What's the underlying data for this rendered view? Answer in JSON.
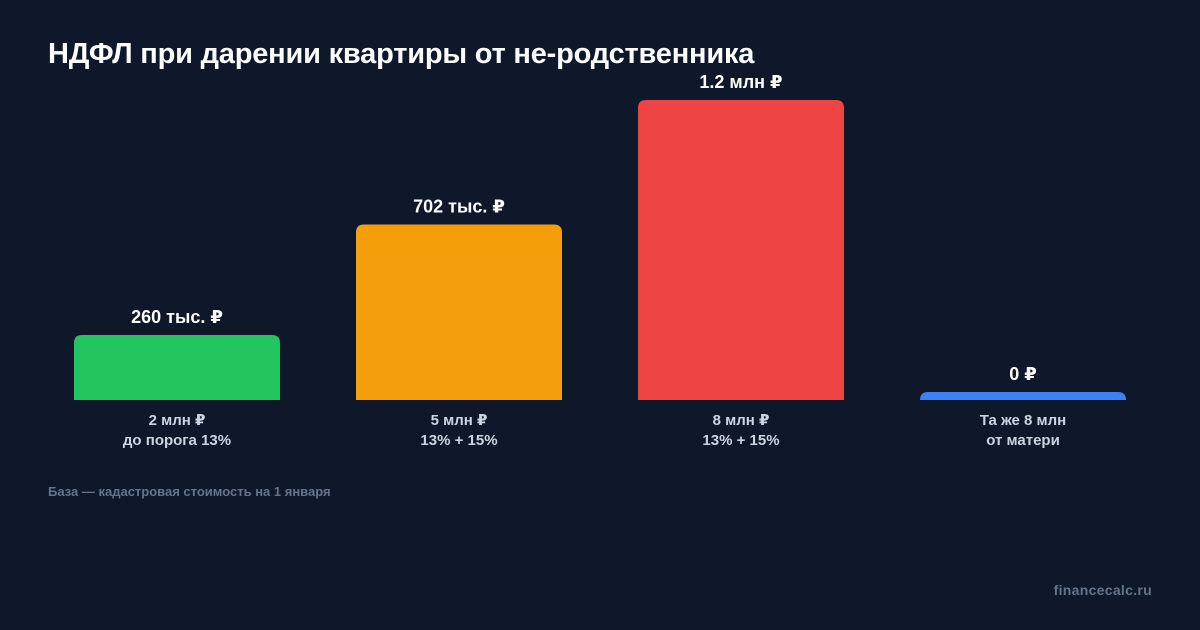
{
  "title": "НДФЛ при дарении квартиры от не-родственника",
  "footnote": "База — кадастровая стоимость на 1 января",
  "brand": "financecalc.ru",
  "chart_data": {
    "type": "bar",
    "title": "НДФЛ при дарении квартиры от не-родственника",
    "categories": [
      [
        "2 млн ₽",
        "до порога 13%"
      ],
      [
        "5 млн ₽",
        "13% + 15%"
      ],
      [
        "8 млн ₽",
        "13% + 15%"
      ],
      [
        "Та же 8 млн",
        "от матери"
      ]
    ],
    "values": [
      260000,
      702000,
      1200000,
      0
    ],
    "value_labels": [
      "260 тыс. ₽",
      "702 тыс. ₽",
      "1.2 млн ₽",
      "0 ₽"
    ],
    "colors": [
      "#22c55e",
      "#f59e0b",
      "#ef4444",
      "#3b82f6"
    ],
    "ylim": [
      0,
      1200000
    ],
    "grid": false,
    "legend": "none"
  }
}
